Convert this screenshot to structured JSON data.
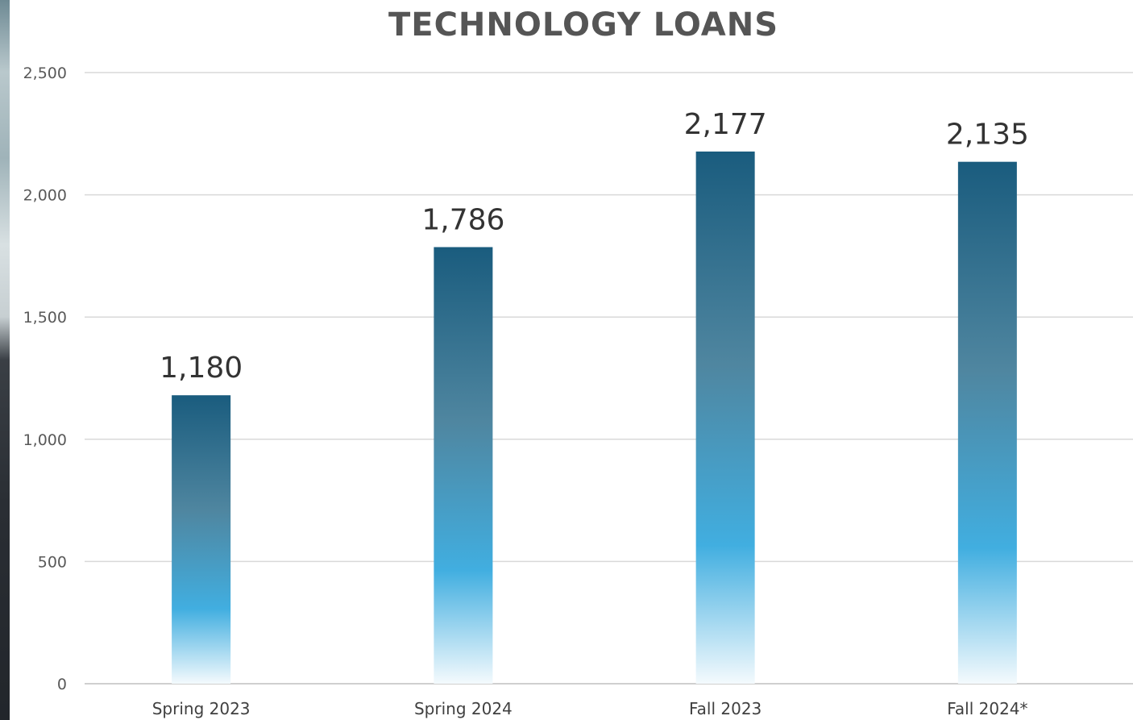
{
  "chart_data": {
    "type": "bar",
    "title": "TECHNOLOGY LOANS",
    "categories": [
      "Spring 2023",
      "Spring 2024",
      "Fall 2023",
      "Fall 2024*"
    ],
    "values": [
      1180,
      1786,
      2177,
      2135
    ],
    "data_labels": [
      "1,180",
      "1,786",
      "2,177",
      "2,135"
    ],
    "ylim": [
      0,
      2500
    ],
    "yticks": [
      0,
      500,
      1000,
      1500,
      2000,
      2500
    ],
    "ytick_labels": [
      "0",
      "500",
      "1,000",
      "1,500",
      "2,000",
      "2,500"
    ],
    "grid": true,
    "legend": "none",
    "colors": {
      "bar_top": "#1a5c7e",
      "bar_mid": "#4f86a0",
      "bar_light": "#41aee0",
      "bar_bottom": "#f4fafd"
    }
  }
}
